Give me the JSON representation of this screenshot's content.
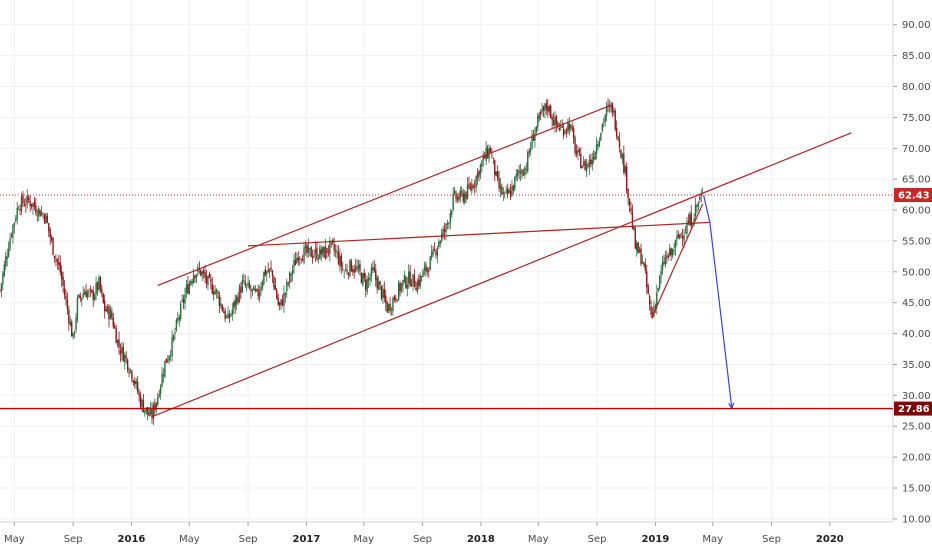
{
  "chart_data": {
    "type": "candlestick",
    "title": "",
    "xlabel": "",
    "ylabel": "",
    "ylim": [
      9.5,
      94
    ],
    "xlim": [
      "2015-04-01",
      "2020-05-10"
    ],
    "grid": true,
    "y_ticks": [
      "90.00",
      "85.00",
      "80.00",
      "75.00",
      "70.00",
      "65.00",
      "60.00",
      "55.00",
      "50.00",
      "45.00",
      "40.00",
      "35.00",
      "30.00",
      "25.00",
      "20.00",
      "15.00",
      "10.00"
    ],
    "x_ticks": [
      {
        "label": "May",
        "date": "2015-05-01",
        "bold": false
      },
      {
        "label": "Sep",
        "date": "2015-09-01",
        "bold": false
      },
      {
        "label": "2016",
        "date": "2016-01-01",
        "bold": true
      },
      {
        "label": "May",
        "date": "2016-05-01",
        "bold": false
      },
      {
        "label": "Sep",
        "date": "2016-09-01",
        "bold": false
      },
      {
        "label": "2017",
        "date": "2017-01-01",
        "bold": true
      },
      {
        "label": "May",
        "date": "2017-05-01",
        "bold": false
      },
      {
        "label": "Sep",
        "date": "2017-09-01",
        "bold": false
      },
      {
        "label": "2018",
        "date": "2018-01-01",
        "bold": true
      },
      {
        "label": "May",
        "date": "2018-05-01",
        "bold": false
      },
      {
        "label": "Sep",
        "date": "2018-09-01",
        "bold": false
      },
      {
        "label": "2019",
        "date": "2019-01-01",
        "bold": true
      },
      {
        "label": "May",
        "date": "2019-05-01",
        "bold": false
      },
      {
        "label": "Sep",
        "date": "2019-09-01",
        "bold": false
      },
      {
        "label": "2020",
        "date": "2020-01-01",
        "bold": true
      }
    ],
    "price_path": [
      [
        "2015-04-01",
        47
      ],
      [
        "2015-04-20",
        55
      ],
      [
        "2015-05-10",
        61
      ],
      [
        "2015-06-01",
        61.5
      ],
      [
        "2015-06-20",
        60
      ],
      [
        "2015-07-05",
        59
      ],
      [
        "2015-07-20",
        54
      ],
      [
        "2015-08-05",
        50
      ],
      [
        "2015-08-20",
        44
      ],
      [
        "2015-09-01",
        39
      ],
      [
        "2015-09-10",
        45
      ],
      [
        "2015-09-25",
        47
      ],
      [
        "2015-10-10",
        46
      ],
      [
        "2015-10-25",
        48
      ],
      [
        "2015-11-05",
        44
      ],
      [
        "2015-11-20",
        43
      ],
      [
        "2015-12-05",
        38
      ],
      [
        "2015-12-20",
        36
      ],
      [
        "2016-01-05",
        33
      ],
      [
        "2016-01-20",
        29
      ],
      [
        "2016-02-05",
        27
      ],
      [
        "2016-02-12",
        26.5
      ],
      [
        "2016-02-25",
        30
      ],
      [
        "2016-03-10",
        35
      ],
      [
        "2016-03-25",
        38
      ],
      [
        "2016-04-10",
        43
      ],
      [
        "2016-04-25",
        47
      ],
      [
        "2016-05-10",
        50
      ],
      [
        "2016-05-25",
        50
      ],
      [
        "2016-06-10",
        48
      ],
      [
        "2016-06-25",
        47
      ],
      [
        "2016-07-05",
        45
      ],
      [
        "2016-07-20",
        42
      ],
      [
        "2016-08-05",
        45
      ],
      [
        "2016-08-20",
        48
      ],
      [
        "2016-09-05",
        47
      ],
      [
        "2016-09-20",
        46
      ],
      [
        "2016-10-05",
        50
      ],
      [
        "2016-10-20",
        50
      ],
      [
        "2016-11-05",
        44
      ],
      [
        "2016-11-15",
        46
      ],
      [
        "2016-12-01",
        50
      ],
      [
        "2016-12-15",
        53
      ],
      [
        "2017-01-05",
        53
      ],
      [
        "2017-01-20",
        53
      ],
      [
        "2017-02-05",
        53
      ],
      [
        "2017-02-20",
        54
      ],
      [
        "2017-03-05",
        53
      ],
      [
        "2017-03-20",
        50
      ],
      [
        "2017-04-05",
        51
      ],
      [
        "2017-04-20",
        50
      ],
      [
        "2017-05-05",
        48
      ],
      [
        "2017-05-20",
        50
      ],
      [
        "2017-06-05",
        47
      ],
      [
        "2017-06-20",
        44
      ],
      [
        "2017-07-05",
        46
      ],
      [
        "2017-07-20",
        48
      ],
      [
        "2017-08-05",
        49
      ],
      [
        "2017-08-20",
        48
      ],
      [
        "2017-09-05",
        50
      ],
      [
        "2017-09-20",
        52
      ],
      [
        "2017-10-05",
        55
      ],
      [
        "2017-10-20",
        57
      ],
      [
        "2017-11-05",
        62
      ],
      [
        "2017-11-20",
        62
      ],
      [
        "2017-12-05",
        63
      ],
      [
        "2017-12-20",
        65
      ],
      [
        "2018-01-05",
        68
      ],
      [
        "2018-01-20",
        70
      ],
      [
        "2018-02-05",
        64
      ],
      [
        "2018-02-20",
        62
      ],
      [
        "2018-03-05",
        63
      ],
      [
        "2018-03-20",
        66
      ],
      [
        "2018-04-05",
        67
      ],
      [
        "2018-04-20",
        72
      ],
      [
        "2018-05-05",
        75
      ],
      [
        "2018-05-20",
        77
      ],
      [
        "2018-06-05",
        74
      ],
      [
        "2018-06-20",
        73
      ],
      [
        "2018-07-05",
        74
      ],
      [
        "2018-07-20",
        69
      ],
      [
        "2018-08-05",
        67
      ],
      [
        "2018-08-20",
        68
      ],
      [
        "2018-09-05",
        72
      ],
      [
        "2018-09-20",
        76
      ],
      [
        "2018-10-03",
        76.5
      ],
      [
        "2018-10-15",
        72
      ],
      [
        "2018-10-30",
        66
      ],
      [
        "2018-11-10",
        60
      ],
      [
        "2018-11-20",
        54
      ],
      [
        "2018-12-05",
        52
      ],
      [
        "2018-12-15",
        47
      ],
      [
        "2018-12-24",
        42.5
      ],
      [
        "2019-01-05",
        47
      ],
      [
        "2019-01-20",
        52
      ],
      [
        "2019-02-05",
        53
      ],
      [
        "2019-02-20",
        56
      ],
      [
        "2019-03-05",
        57
      ],
      [
        "2019-03-20",
        59
      ],
      [
        "2019-04-05",
        62
      ],
      [
        "2019-04-12",
        62.4
      ]
    ],
    "lines": [
      {
        "name": "channel-upper",
        "color": "#b22222",
        "from": [
          "2016-02-25",
          47.8
        ],
        "to": [
          "2018-10-01",
          77
        ]
      },
      {
        "name": "channel-lower",
        "color": "#b22222",
        "from": [
          "2016-02-12",
          26.5
        ],
        "to": [
          "2020-02-15",
          72.5
        ]
      },
      {
        "name": "mid-line",
        "color": "#b22222",
        "from": [
          "2016-09-01",
          54.2
        ],
        "to": [
          "2019-04-25",
          58
        ]
      },
      {
        "name": "wedge-line",
        "color": "#b22222",
        "from": [
          "2018-12-24",
          42.5
        ],
        "to": [
          "2019-04-10",
          61
        ]
      },
      {
        "name": "blue-projection-1",
        "color": "#3a46c8",
        "from": [
          "2019-04-12",
          62.4
        ],
        "to": [
          "2019-04-25",
          58
        ]
      },
      {
        "name": "blue-projection-2",
        "color": "#3a46c8",
        "from": [
          "2019-04-25",
          58
        ],
        "to": [
          "2019-06-10",
          27.9
        ]
      }
    ],
    "horizontal_levels": [
      {
        "label": "62.43",
        "value": 62.43,
        "color": "#c62828",
        "style": "dotted"
      },
      {
        "label": "27.86",
        "value": 27.86,
        "color": "#c00000",
        "style": "solid",
        "dark_label": true
      }
    ],
    "colors": {
      "up": "#2f6b3f",
      "down": "#8b1a1a",
      "grid": "#eef0f3",
      "axis": "#d0d3d8"
    }
  }
}
